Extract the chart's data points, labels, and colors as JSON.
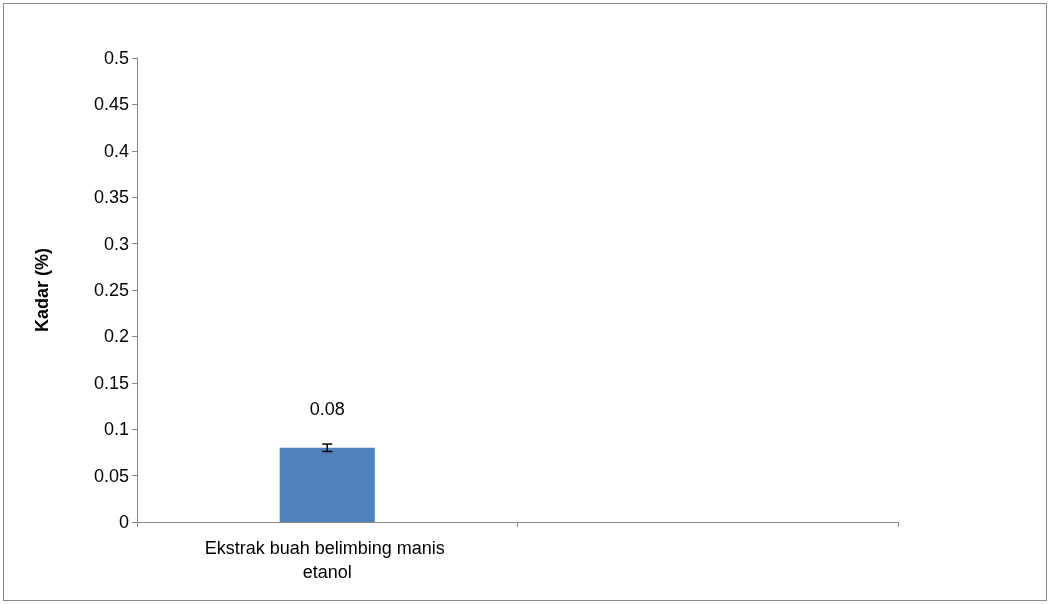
{
  "chart_data": {
    "type": "bar",
    "ylabel": "Kadar (%)",
    "categories": [
      "Ekstrak buah belimbing manis etanol",
      null
    ],
    "values": [
      0.08,
      null
    ],
    "errors": [
      0.004,
      null
    ],
    "color": "#4f81bd",
    "ylim": [
      0,
      0.5
    ],
    "yticks": [
      0,
      0.05,
      0.1,
      0.15,
      0.2,
      0.25,
      0.3,
      0.35,
      0.4,
      0.45,
      0.5
    ],
    "data_labels": true,
    "grid": false
  }
}
